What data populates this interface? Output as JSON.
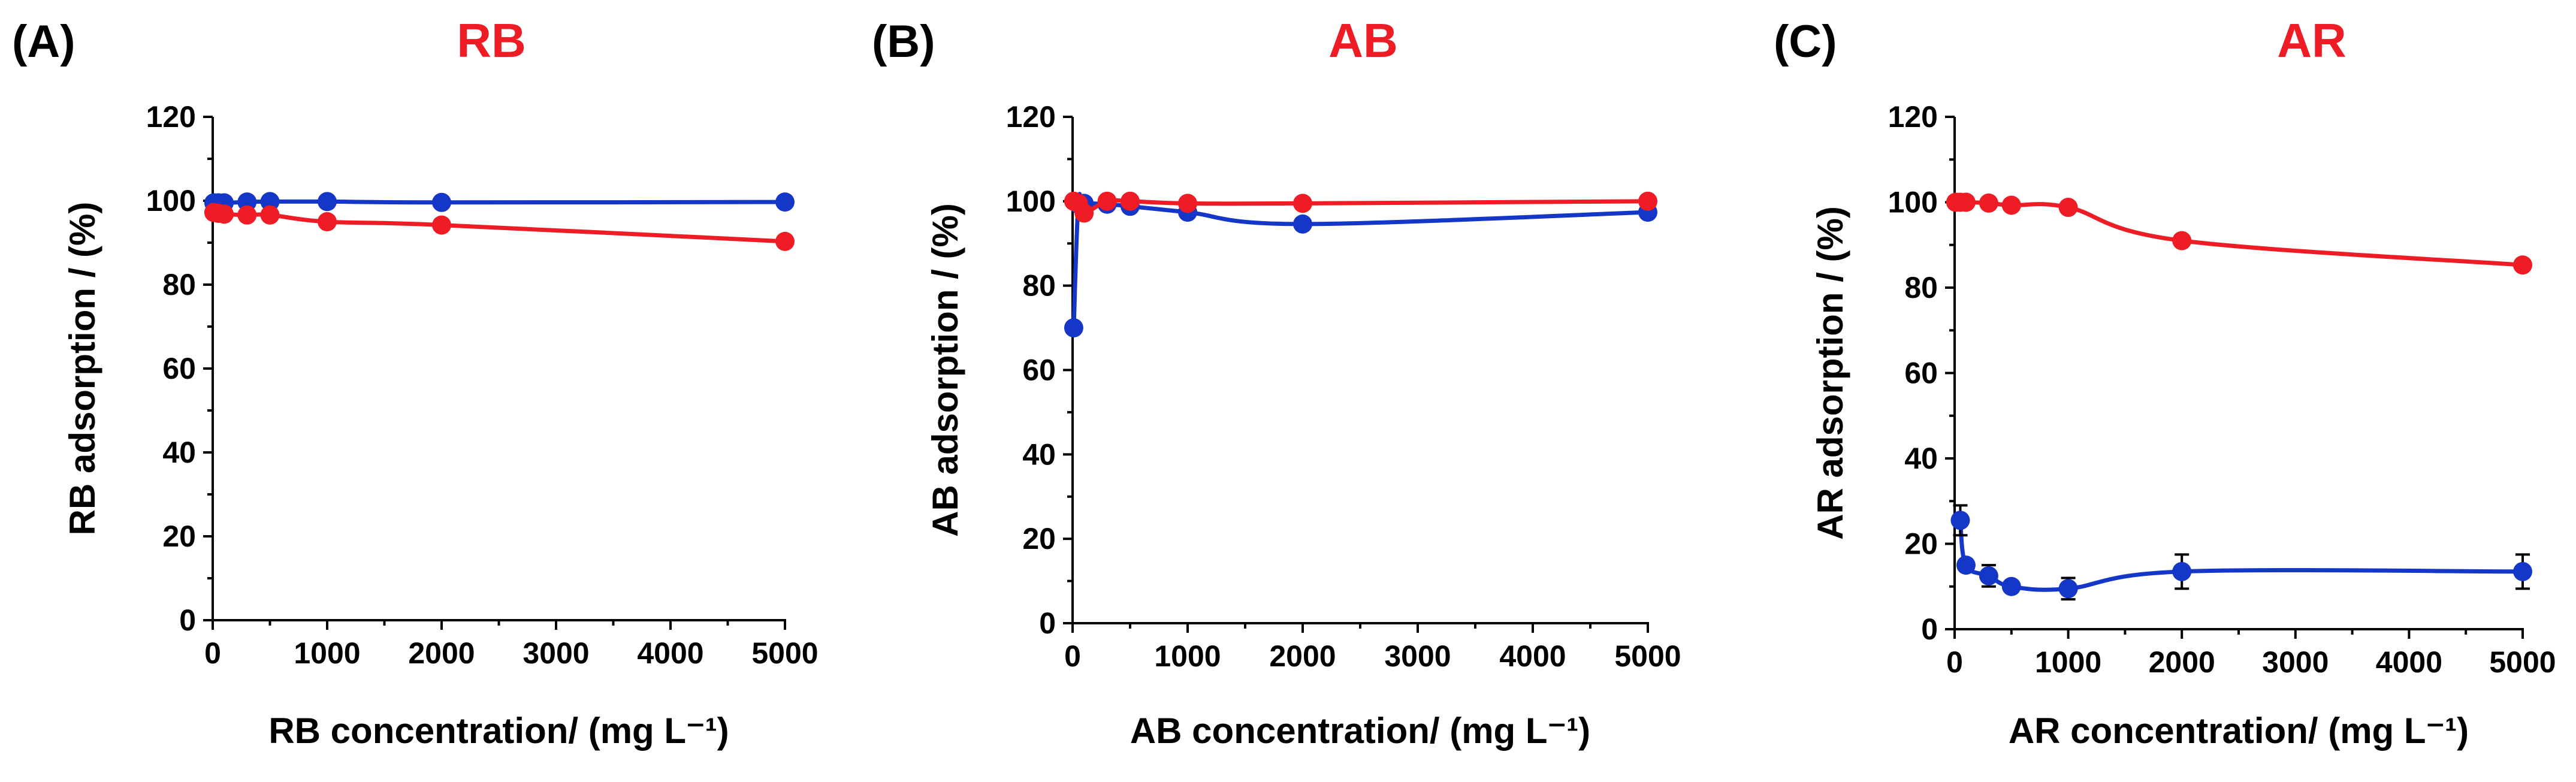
{
  "colors": {
    "red": "#ee1c24",
    "blue": "#1537c8",
    "axis": "#000000"
  },
  "chart_data": [
    {
      "type": "line",
      "panel_label": "(A)",
      "title": "RB",
      "xlabel": "RB concentration/ (mg L⁻¹)",
      "ylabel": "RB adsorption / (%)",
      "xlim": [
        0,
        5000
      ],
      "ylim": [
        0,
        120
      ],
      "xticks": [
        "0",
        "1000",
        "2000",
        "3000",
        "4000",
        "5000"
      ],
      "yticks": [
        "0",
        "20",
        "40",
        "60",
        "80",
        "100",
        "120"
      ],
      "grid": false,
      "series": [
        {
          "name": "blue",
          "color": "#1537c8",
          "x": [
            10,
            50,
            100,
            300,
            500,
            1000,
            2000,
            5000
          ],
          "y": [
            99.5,
            99.5,
            99.5,
            99.7,
            99.8,
            99.8,
            99.6,
            99.7
          ],
          "err": [
            0,
            0,
            0,
            0,
            0,
            0,
            0,
            0
          ]
        },
        {
          "name": "red",
          "color": "#ee1c24",
          "x": [
            10,
            50,
            100,
            300,
            500,
            1000,
            2000,
            5000
          ],
          "y": [
            97.2,
            97.0,
            96.8,
            96.6,
            96.6,
            95.0,
            94.2,
            90.3
          ],
          "err": [
            0,
            0,
            0,
            0,
            0,
            0,
            0,
            0
          ]
        }
      ]
    },
    {
      "type": "line",
      "panel_label": "(B)",
      "title": "AB",
      "xlabel": "AB concentration/ (mg L⁻¹)",
      "ylabel": "AB adsorption / (%)",
      "xlim": [
        0,
        5000
      ],
      "ylim": [
        0,
        120
      ],
      "xticks": [
        "0",
        "1000",
        "2000",
        "3000",
        "4000",
        "5000"
      ],
      "yticks": [
        "0",
        "20",
        "40",
        "60",
        "80",
        "100",
        "120"
      ],
      "grid": false,
      "series": [
        {
          "name": "blue",
          "color": "#1537c8",
          "x": [
            10,
            50,
            100,
            300,
            500,
            1000,
            2000,
            5000
          ],
          "y": [
            70.0,
            99.3,
            99.5,
            99.3,
            98.8,
            97.4,
            94.6,
            97.4
          ],
          "err": [
            0,
            0,
            0,
            0,
            0,
            0,
            0,
            0
          ]
        },
        {
          "name": "red",
          "color": "#ee1c24",
          "x": [
            10,
            50,
            100,
            300,
            500,
            1000,
            2000,
            5000
          ],
          "y": [
            100.0,
            99.5,
            97.2,
            100.0,
            100.0,
            99.5,
            99.5,
            100.0
          ],
          "err": [
            0,
            0,
            0,
            0,
            0,
            0,
            0,
            0
          ]
        }
      ]
    },
    {
      "type": "line",
      "panel_label": "(C)",
      "title": "AR",
      "xlabel": "AR concentration/ (mg L⁻¹)",
      "ylabel": "AR adsorption / (%)",
      "xlim": [
        0,
        5000
      ],
      "ylim": [
        0,
        120
      ],
      "xticks": [
        "0",
        "1000",
        "2000",
        "3000",
        "4000",
        "5000"
      ],
      "yticks": [
        "0",
        "20",
        "40",
        "60",
        "80",
        "100",
        "120"
      ],
      "grid": false,
      "series": [
        {
          "name": "red",
          "color": "#ee1c24",
          "x": [
            10,
            50,
            100,
            300,
            500,
            1000,
            2000,
            5000
          ],
          "y": [
            100.0,
            100.0,
            100.0,
            99.8,
            99.3,
            98.8,
            91.0,
            85.3
          ],
          "err": [
            0,
            0,
            0,
            0,
            0,
            0,
            0,
            0
          ]
        },
        {
          "name": "blue",
          "color": "#1537c8",
          "x": [
            50,
            100,
            300,
            500,
            1000,
            2000,
            5000
          ],
          "y": [
            25.5,
            15.0,
            12.5,
            10.0,
            9.5,
            13.5,
            13.5
          ],
          "err": [
            3.5,
            0,
            2.5,
            0,
            2.5,
            4.0,
            4.0
          ]
        }
      ]
    }
  ]
}
